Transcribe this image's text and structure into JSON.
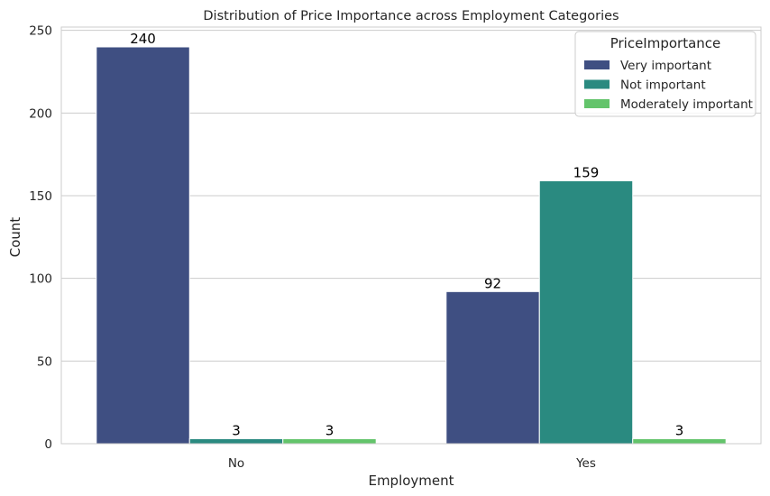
{
  "chart_data": {
    "type": "bar",
    "title": "Distribution of Price Importance across Employment Categories",
    "xlabel": "Employment",
    "ylabel": "Count",
    "categories": [
      "No",
      "Yes"
    ],
    "series": [
      {
        "name": "Very important",
        "values": [
          240,
          92
        ],
        "color": "#3f4f82"
      },
      {
        "name": "Not important",
        "values": [
          3,
          159
        ],
        "color": "#2a8a80"
      },
      {
        "name": "Moderately important",
        "values": [
          3,
          3
        ],
        "color": "#63c46b"
      }
    ],
    "data_labels": [
      "240",
      "3",
      "3",
      "92",
      "159",
      "3"
    ],
    "ylim": [
      0,
      252
    ],
    "yticks": [
      0,
      50,
      100,
      150,
      200,
      250
    ],
    "grid": true,
    "legend": {
      "title": "PriceImportance",
      "position": "top-right"
    }
  }
}
